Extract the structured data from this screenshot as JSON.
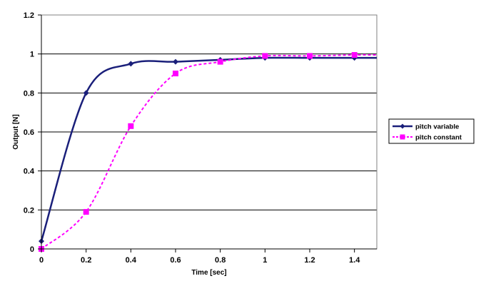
{
  "chart_data": {
    "type": "line",
    "xlabel": "Time [sec]",
    "ylabel": "Output [N]",
    "xlim": [
      0,
      1.5
    ],
    "ylim": [
      0,
      1.2
    ],
    "x_ticks": [
      0,
      0.2,
      0.4,
      0.6,
      0.8,
      1,
      1.2,
      1.4
    ],
    "x_tick_labels": [
      "0",
      "0.2",
      "0.4",
      "0.6",
      "0.8",
      "1",
      "1.2",
      "1.4"
    ],
    "y_ticks": [
      0,
      0.2,
      0.4,
      0.6,
      0.8,
      1,
      1.2
    ],
    "y_tick_labels": [
      "0",
      "0.2",
      "0.4",
      "0.6",
      "0.8",
      "1",
      "1.2"
    ],
    "grid": "horizontal",
    "legend_position": "right",
    "series": [
      {
        "name": "pitch variable",
        "color": "#1a1f7a",
        "line_style": "solid",
        "marker": "diamond",
        "x": [
          0,
          0.2,
          0.4,
          0.6,
          0.8,
          1.0,
          1.2,
          1.4
        ],
        "values": [
          0.04,
          0.8,
          0.95,
          0.96,
          0.97,
          0.98,
          0.98,
          0.98
        ],
        "x_end": 1.5,
        "value_end": 0.98
      },
      {
        "name": "pitch constant",
        "color": "#ff00ff",
        "line_style": "dashed",
        "marker": "square",
        "x": [
          0,
          0.2,
          0.4,
          0.6,
          0.8,
          1.0,
          1.2,
          1.4
        ],
        "values": [
          0.0,
          0.19,
          0.63,
          0.9,
          0.96,
          0.99,
          0.99,
          0.995
        ],
        "x_end": 1.5,
        "value_end": 0.995
      }
    ]
  }
}
